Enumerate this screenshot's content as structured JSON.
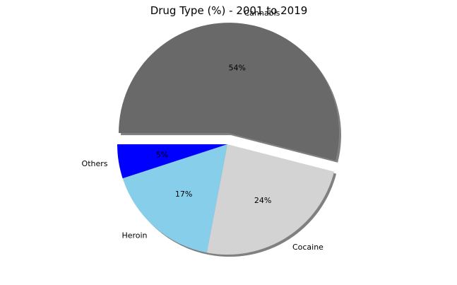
{
  "chart_data": {
    "type": "pie",
    "title": "Drug Type (%) - 2001 to 2019",
    "slices": [
      {
        "label": "Others",
        "value": 5,
        "display": "5%",
        "color": "#0000ff",
        "explode": false
      },
      {
        "label": "Heroin",
        "value": 17,
        "display": "17%",
        "color": "#87ceeb",
        "explode": false
      },
      {
        "label": "Cocaine",
        "value": 24,
        "display": "24%",
        "color": "#d3d3d3",
        "explode": false
      },
      {
        "label": "Cannabis",
        "value": 54,
        "display": "54%",
        "color": "#696969",
        "explode": true
      }
    ],
    "shadow": true,
    "legend": "none"
  }
}
